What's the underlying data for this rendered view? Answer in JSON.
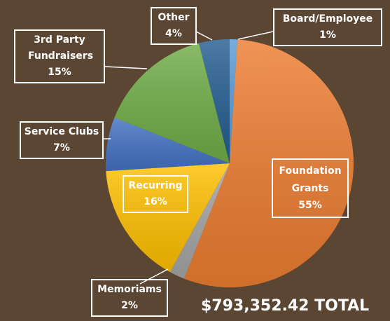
{
  "chart_data": {
    "type": "pie",
    "categories": [
      "Board/Employee",
      "Foundation Grants",
      "Memoriams",
      "Recurring",
      "Service Clubs",
      "3rd Party Fundraisers",
      "Other"
    ],
    "values": [
      1,
      55,
      2,
      16,
      7,
      15,
      4
    ],
    "value_labels": [
      "1%",
      "55%",
      "2%",
      "16%",
      "7%",
      "15%",
      "4%"
    ],
    "colors": [
      "#5b9bd5",
      "#ed7d31",
      "#a5a5a5",
      "#ffc000",
      "#4472c4",
      "#70ad47",
      "#255e91"
    ],
    "annotation": "$793,352.42 TOTAL"
  }
}
